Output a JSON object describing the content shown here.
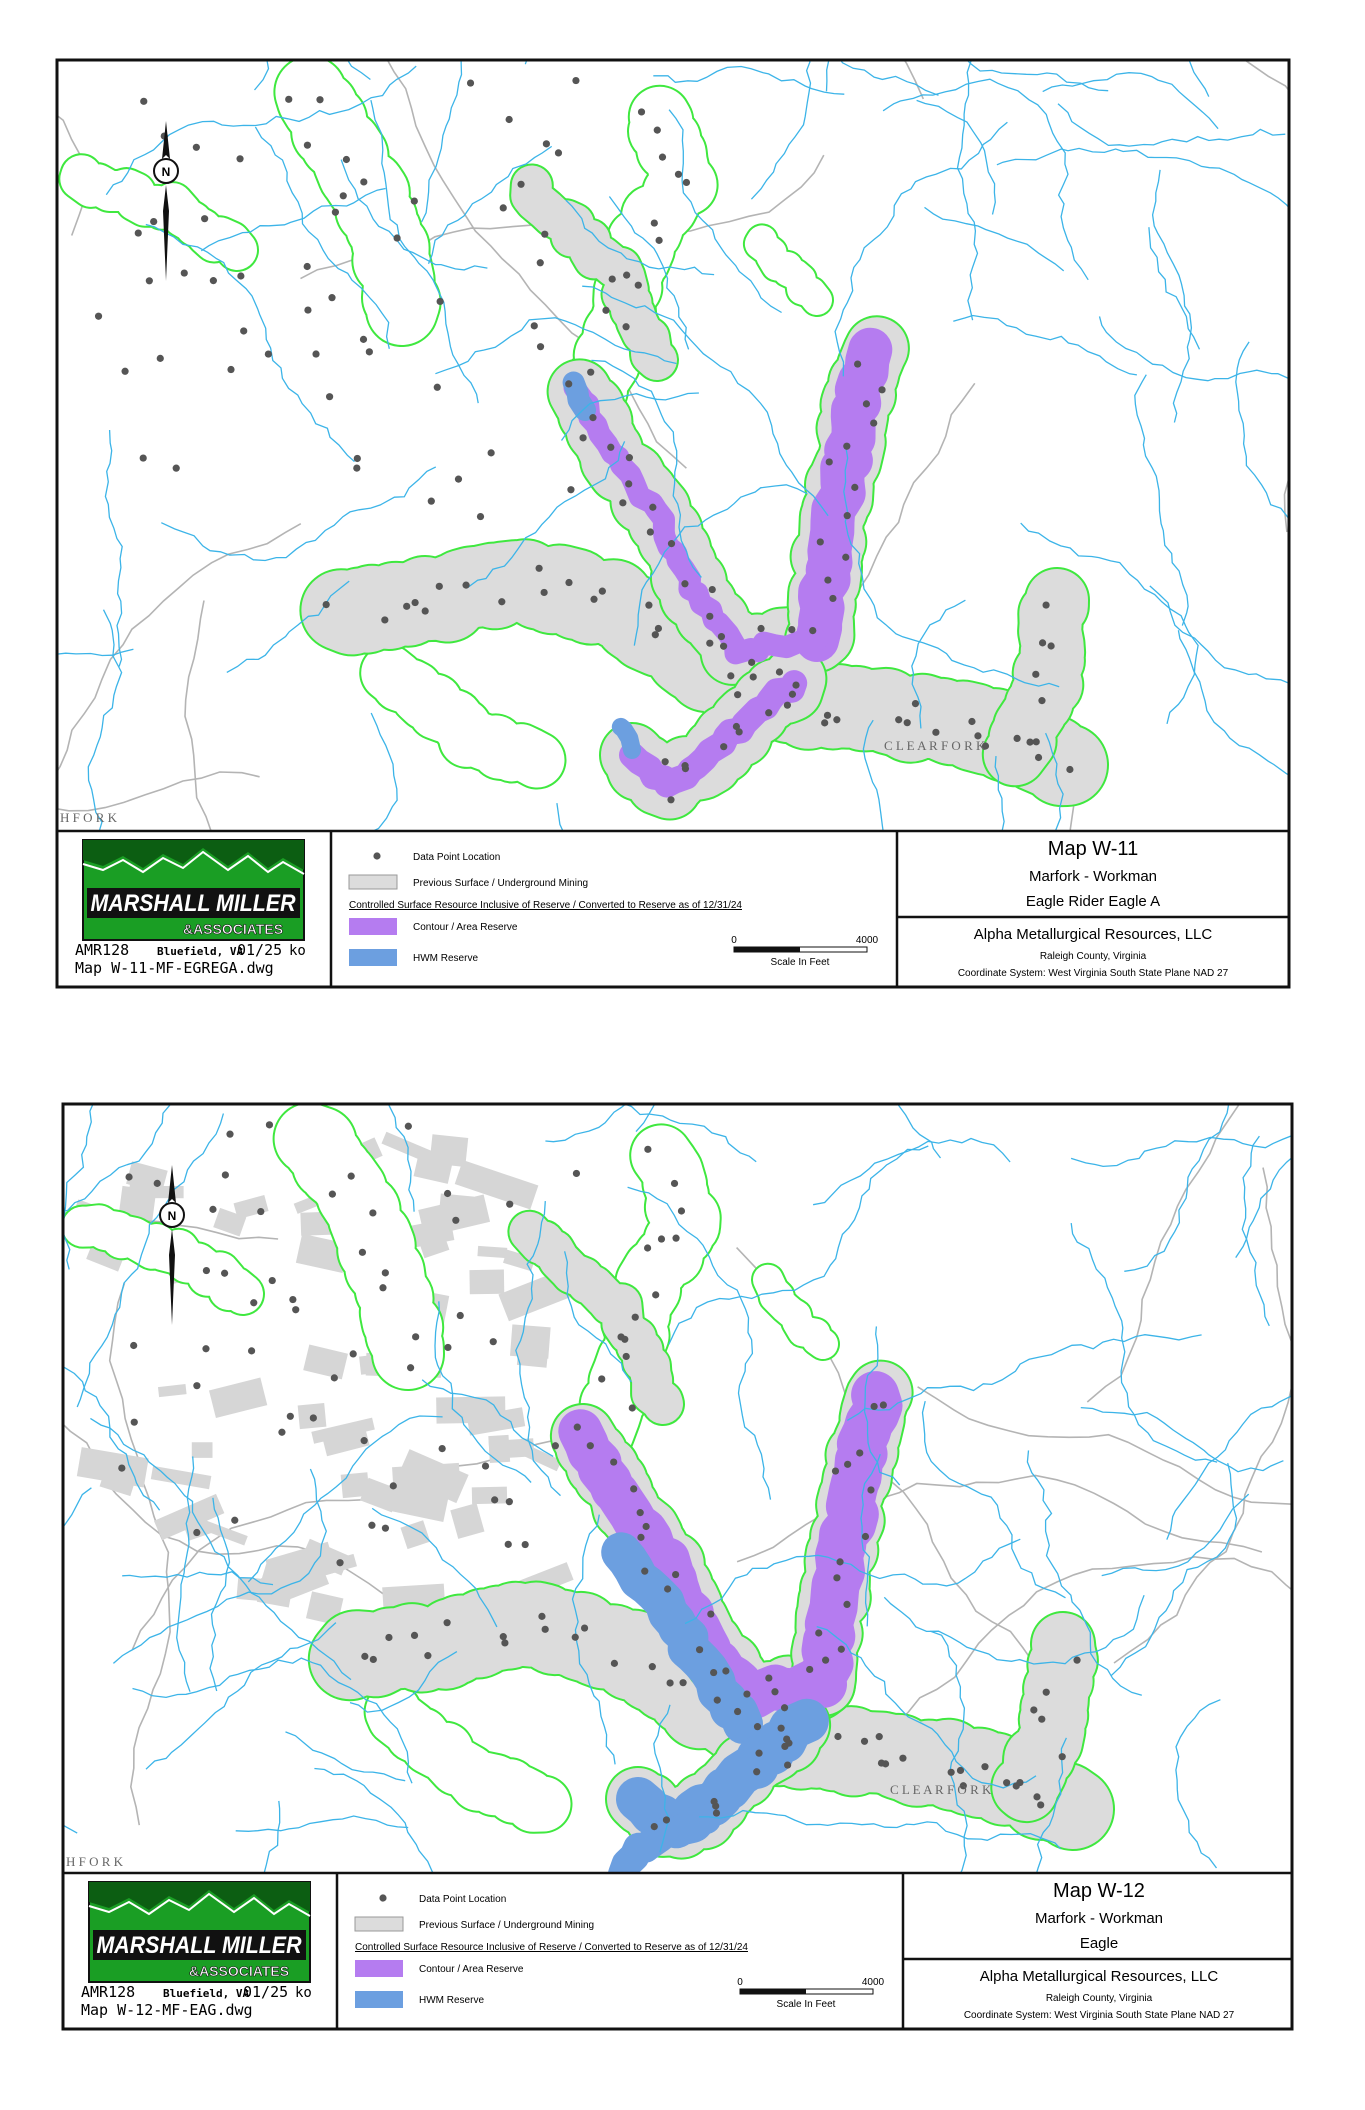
{
  "maps": [
    {
      "map_labels": [
        "C L E A R     F O R K",
        "H     F O R K"
      ],
      "north_label": "N",
      "logo": {
        "name": "MARSHALL MILLER",
        "sub": "&ASSOCIATES"
      },
      "drawing_info": {
        "project": "AMR128",
        "office": "Bluefield, VA",
        "date": "01/25",
        "author": "ko",
        "file": "Map W-11-MF-EGREGA.dwg"
      },
      "legend": {
        "data_point": "Data Point Location",
        "previous_mining": "Previous Surface / Underground Mining",
        "note": "Controlled Surface Resource Inclusive of Reserve / Converted to Reserve as of 12/31/24",
        "contour_reserve": "Contour / Area Reserve",
        "hwm_reserve": "HWM Reserve"
      },
      "scale": {
        "start": "0",
        "end": "4000",
        "label": "Scale In Feet"
      },
      "title_block": {
        "map_id": "Map W-11",
        "area": "Marfork - Workman",
        "seam": "Eagle Rider Eagle A",
        "company": "Alpha Metallurgical Resources, LLC",
        "county": "Raleigh County, Virginia",
        "coordinates": "Coordinate System: West Virginia South State Plane NAD 27"
      }
    },
    {
      "map_labels": [
        "C L E A R     F O R K",
        "H     F O R K"
      ],
      "north_label": "N",
      "logo": {
        "name": "MARSHALL MILLER",
        "sub": "&ASSOCIATES"
      },
      "drawing_info": {
        "project": "AMR128",
        "office": "Bluefield, VA",
        "date": "01/25",
        "author": "ko",
        "file": "Map W-12-MF-EAG.dwg"
      },
      "legend": {
        "data_point": "Data Point Location",
        "previous_mining": "Previous Surface / Underground Mining",
        "note": "Controlled Surface Resource Inclusive of Reserve / Converted to Reserve as of 12/31/24",
        "contour_reserve": "Contour / Area Reserve",
        "hwm_reserve": "HWM Reserve"
      },
      "scale": {
        "start": "0",
        "end": "4000",
        "label": "Scale In Feet"
      },
      "title_block": {
        "map_id": "Map W-12",
        "area": "Marfork - Workman",
        "seam": "Eagle",
        "company": "Alpha Metallurgical Resources, LLC",
        "county": "Raleigh County, Virginia",
        "coordinates": "Coordinate System: West Virginia South State Plane NAD 27"
      }
    }
  ]
}
